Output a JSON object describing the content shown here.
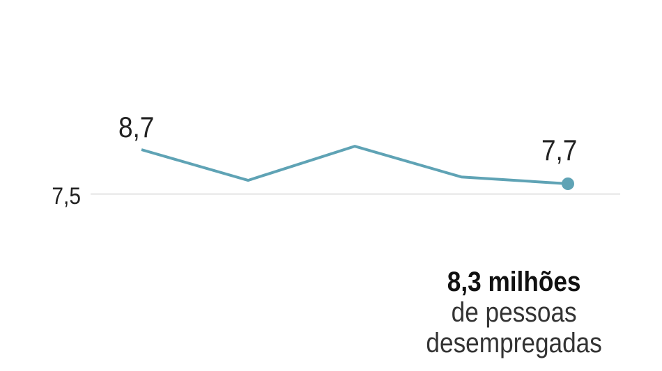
{
  "chart_data": {
    "type": "line",
    "categories": [
      "",
      "",
      "",
      "",
      ""
    ],
    "series": [
      {
        "values": [
          8.7,
          7.8,
          8.8,
          7.9,
          7.7
        ]
      }
    ],
    "data_labels": {
      "first": "8,7",
      "last": "7,7"
    },
    "y_ticks": [
      {
        "value": 7.5,
        "label": "7,5"
      }
    ],
    "grid": true,
    "line_color": "#5fa3b5",
    "grid_color": "#e6e6e6"
  },
  "annotation": {
    "headline": "8,3 milhões",
    "line1": "de pessoas",
    "line2": "desempregadas"
  }
}
